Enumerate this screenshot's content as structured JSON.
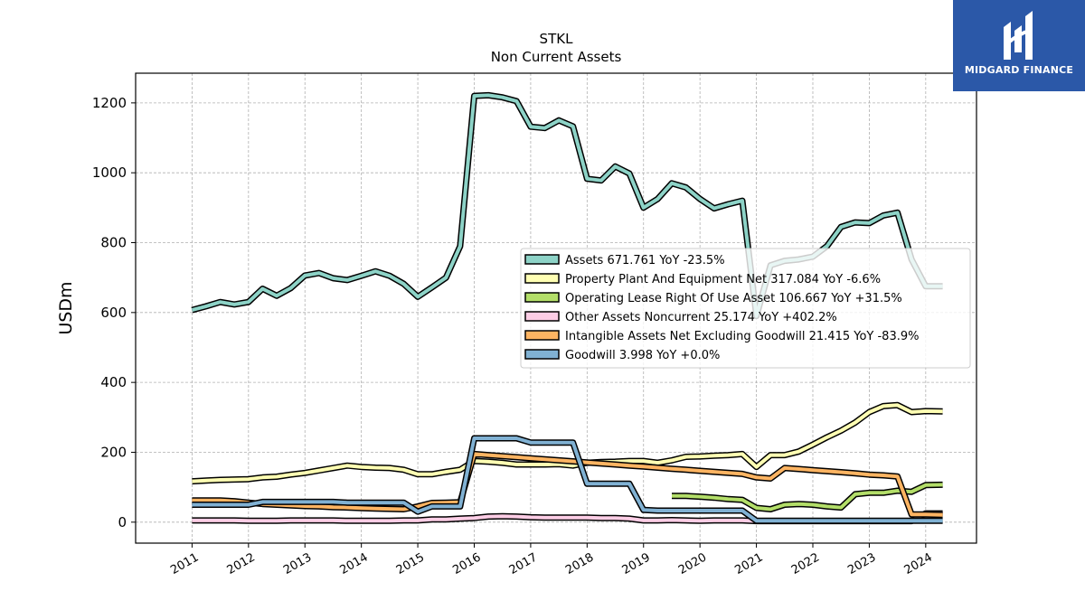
{
  "brand": {
    "name": "MIDGARD FINANCE",
    "color": "#2b58a8"
  },
  "chart_data": {
    "type": "line",
    "title": "STKL",
    "subtitle": "Non Current  Assets",
    "ylabel": "USDm",
    "ylim": [
      -60,
      1285
    ],
    "xlim": [
      2010.0,
      2024.9
    ],
    "yticks": [
      0,
      200,
      400,
      600,
      800,
      1000,
      1200
    ],
    "xticks": [
      "2011",
      "2012",
      "2013",
      "2014",
      "2015",
      "2016",
      "2017",
      "2018",
      "2019",
      "2020",
      "2021",
      "2022",
      "2023",
      "2024"
    ],
    "grid": true,
    "legend_position": "right",
    "series": [
      {
        "name": "Assets",
        "legend": "Assets  671.761 YoY -23.5%",
        "color": "#8dd3c7",
        "x": [
          2011.0,
          2011.25,
          2011.5,
          2011.75,
          2012.0,
          2012.25,
          2012.5,
          2012.75,
          2013.0,
          2013.25,
          2013.5,
          2013.75,
          2014.0,
          2014.25,
          2014.5,
          2014.75,
          2015.0,
          2015.25,
          2015.5,
          2015.75,
          2016.0,
          2016.25,
          2016.5,
          2016.75,
          2017.0,
          2017.25,
          2017.5,
          2017.75,
          2018.0,
          2018.25,
          2018.5,
          2018.75,
          2019.0,
          2019.25,
          2019.5,
          2019.75,
          2020.0,
          2020.25,
          2020.5,
          2020.75,
          2021.0,
          2021.25,
          2021.5,
          2021.75,
          2022.0,
          2022.25,
          2022.5,
          2022.75,
          2023.0,
          2023.25,
          2023.5,
          2023.75,
          2024.0,
          2024.3
        ],
        "y": [
          607,
          618,
          630,
          623,
          630,
          668,
          648,
          670,
          706,
          713,
          698,
          693,
          705,
          718,
          705,
          682,
          645,
          672,
          700,
          790,
          1220,
          1222,
          1216,
          1205,
          1132,
          1128,
          1150,
          1133,
          983,
          978,
          1018,
          998,
          900,
          925,
          970,
          958,
          925,
          898,
          910,
          920,
          590,
          735,
          748,
          752,
          760,
          790,
          845,
          858,
          856,
          878,
          886,
          752,
          675,
          675
        ]
      },
      {
        "name": "Property Plant And Equipment Net",
        "legend": "Property Plant And Equipment Net  317.084 YoY -6.6%",
        "color": "#ffffb3",
        "x": [
          2011.0,
          2011.25,
          2011.5,
          2011.75,
          2012.0,
          2012.25,
          2012.5,
          2012.75,
          2013.0,
          2013.25,
          2013.5,
          2013.75,
          2014.0,
          2014.25,
          2014.5,
          2014.75,
          2015.0,
          2015.25,
          2015.5,
          2015.75,
          2016.0,
          2016.25,
          2016.5,
          2016.75,
          2017.0,
          2017.25,
          2017.5,
          2017.75,
          2018.0,
          2018.25,
          2018.5,
          2018.75,
          2019.0,
          2019.25,
          2019.5,
          2019.75,
          2020.0,
          2020.25,
          2020.5,
          2020.75,
          2021.0,
          2021.25,
          2021.5,
          2021.75,
          2022.0,
          2022.25,
          2022.5,
          2022.75,
          2023.0,
          2023.25,
          2023.5,
          2023.75,
          2024.0,
          2024.3
        ],
        "y": [
          117,
          119,
          121,
          122,
          123,
          128,
          130,
          136,
          141,
          148,
          155,
          162,
          158,
          156,
          155,
          150,
          137,
          137,
          144,
          150,
          175,
          173,
          170,
          165,
          165,
          165,
          166,
          162,
          170,
          172,
          173,
          175,
          175,
          170,
          177,
          187,
          188,
          190,
          192,
          195,
          158,
          192,
          192,
          202,
          222,
          243,
          262,
          285,
          315,
          332,
          335,
          315,
          318,
          317
        ]
      },
      {
        "name": "Operating Lease Right Of Use Asset",
        "legend": "Operating Lease Right Of Use Asset  106.667 YoY +31.5%",
        "color": "#b3de69",
        "x": [
          2019.5,
          2019.75,
          2020.0,
          2020.25,
          2020.5,
          2020.75,
          2021.0,
          2021.25,
          2021.5,
          2021.75,
          2022.0,
          2022.25,
          2022.5,
          2022.75,
          2023.0,
          2023.25,
          2023.5,
          2023.75,
          2024.0,
          2024.3
        ],
        "y": [
          75,
          75,
          73,
          70,
          66,
          64,
          41,
          37,
          50,
          52,
          50,
          45,
          42,
          80,
          84,
          84,
          90,
          87,
          106,
          107
        ]
      },
      {
        "name": "Other Assets Noncurrent",
        "legend": "Other Assets Noncurrent  25.174 YoY +402.2%",
        "color": "#fccde5",
        "x": [
          2011.0,
          2011.25,
          2011.5,
          2011.75,
          2012.0,
          2012.25,
          2012.5,
          2012.75,
          2013.0,
          2013.25,
          2013.5,
          2013.75,
          2014.0,
          2014.25,
          2014.5,
          2014.75,
          2015.0,
          2015.25,
          2015.5,
          2015.75,
          2016.0,
          2016.25,
          2016.5,
          2016.75,
          2017.0,
          2017.25,
          2017.5,
          2017.75,
          2018.0,
          2018.25,
          2018.5,
          2018.75,
          2019.0,
          2019.25,
          2019.5,
          2019.75,
          2020.0,
          2020.25,
          2020.5,
          2020.75,
          2021.0,
          2021.25,
          2021.5,
          2021.75,
          2022.0,
          2022.25,
          2022.5,
          2022.75,
          2023.0,
          2023.25,
          2023.5,
          2023.75,
          2024.0,
          2024.3
        ],
        "y": [
          5,
          5,
          5,
          5,
          4,
          4,
          4,
          5,
          5,
          5,
          5,
          4,
          4,
          4,
          4,
          5,
          5,
          8,
          8,
          10,
          12,
          16,
          17,
          16,
          14,
          13,
          13,
          13,
          13,
          12,
          12,
          10,
          5,
          5,
          6,
          5,
          4,
          5,
          5,
          5,
          3,
          3,
          3,
          3,
          3,
          3,
          3,
          3,
          3,
          3,
          3,
          3,
          25,
          25
        ]
      },
      {
        "name": "Intangible Assets Net Excluding Goodwill",
        "legend": "Intangible Assets Net Excluding Goodwill  21.415 YoY -83.9%",
        "color": "#fdb462",
        "x": [
          2011.0,
          2011.25,
          2011.5,
          2011.75,
          2012.0,
          2012.25,
          2012.5,
          2012.75,
          2013.0,
          2013.25,
          2013.5,
          2013.75,
          2014.0,
          2014.25,
          2014.5,
          2014.75,
          2015.0,
          2015.25,
          2015.5,
          2015.75,
          2016.0,
          2016.25,
          2016.5,
          2016.75,
          2017.0,
          2017.25,
          2017.5,
          2017.75,
          2018.0,
          2018.25,
          2018.5,
          2018.75,
          2019.0,
          2019.25,
          2019.5,
          2019.75,
          2020.0,
          2020.25,
          2020.5,
          2020.75,
          2021.0,
          2021.25,
          2021.5,
          2021.75,
          2022.0,
          2022.25,
          2022.5,
          2022.75,
          2023.0,
          2023.25,
          2023.5,
          2023.75,
          2024.0,
          2024.3
        ],
        "y": [
          62,
          62,
          62,
          60,
          56,
          52,
          50,
          48,
          46,
          45,
          43,
          42,
          40,
          39,
          38,
          37,
          45,
          55,
          56,
          57,
          195,
          192,
          189,
          186,
          183,
          180,
          177,
          174,
          171,
          168,
          165,
          162,
          159,
          156,
          153,
          150,
          147,
          144,
          141,
          138,
          128,
          125,
          155,
          152,
          149,
          146,
          143,
          140,
          136,
          134,
          131,
          22,
          22,
          21
        ]
      },
      {
        "name": "Goodwill",
        "legend": "Goodwill  3.998 YoY +0.0%",
        "color": "#80b1d3",
        "x": [
          2011.0,
          2011.25,
          2011.5,
          2011.75,
          2012.0,
          2012.25,
          2012.5,
          2012.75,
          2013.0,
          2013.25,
          2013.5,
          2013.75,
          2014.0,
          2014.25,
          2014.5,
          2014.75,
          2015.0,
          2015.25,
          2015.5,
          2015.75,
          2016.0,
          2016.25,
          2016.5,
          2016.75,
          2017.0,
          2017.25,
          2017.5,
          2017.75,
          2018.0,
          2018.25,
          2018.5,
          2018.75,
          2019.0,
          2019.25,
          2019.5,
          2019.75,
          2020.0,
          2020.25,
          2020.5,
          2020.75,
          2021.0,
          2021.25,
          2021.5,
          2021.75,
          2022.0,
          2022.25,
          2022.5,
          2022.75,
          2023.0,
          2023.25,
          2023.5,
          2023.75,
          2024.0,
          2024.3
        ],
        "y": [
          50,
          50,
          50,
          50,
          50,
          58,
          58,
          58,
          58,
          58,
          58,
          56,
          56,
          56,
          56,
          56,
          30,
          45,
          45,
          45,
          240,
          240,
          240,
          240,
          228,
          228,
          228,
          228,
          110,
          110,
          110,
          110,
          35,
          33,
          33,
          33,
          33,
          33,
          33,
          33,
          4,
          4,
          4,
          4,
          4,
          4,
          4,
          4,
          4,
          4,
          4,
          4,
          4,
          4
        ]
      }
    ]
  }
}
